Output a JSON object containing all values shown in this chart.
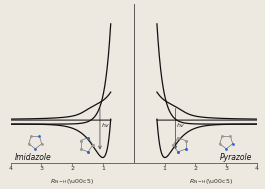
{
  "background_color": "#ede8e0",
  "line_color": "#111111",
  "label_left": "Imidazole",
  "label_right": "Pyrazole",
  "xlabel_left": "R_{N-H}(Å)",
  "xlabel_right": "R_{N-H}(Å)"
}
